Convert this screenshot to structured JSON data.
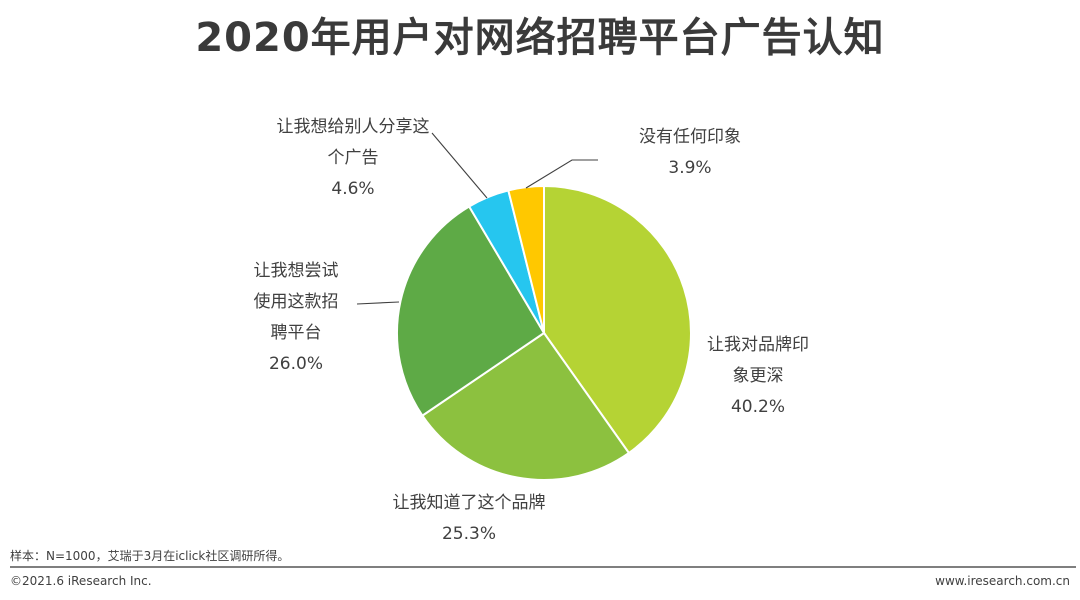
{
  "chart_data": {
    "type": "pie",
    "title": "2020年用户对网络招聘平台广告认知",
    "slices": [
      {
        "label_lines": [
          "让我对品牌印",
          "象更深"
        ],
        "value": 40.2,
        "value_text": "40.2%",
        "color": "#b5d334",
        "slice_name": "slice-brand-impression-deeper"
      },
      {
        "label_lines": [
          "让我知道了这个品牌"
        ],
        "value": 25.3,
        "value_text": "25.3%",
        "color": "#8cc13f",
        "slice_name": "slice-know-brand"
      },
      {
        "label_lines": [
          "让我想尝试",
          "使用这款招",
          "聘平台"
        ],
        "value": 26.0,
        "value_text": "26.0%",
        "color": "#5eaa46",
        "slice_name": "slice-want-to-try"
      },
      {
        "label_lines": [
          "让我想给别人分享这",
          "个广告"
        ],
        "value": 4.6,
        "value_text": "4.6%",
        "color": "#26c6ef",
        "slice_name": "slice-share-ad"
      },
      {
        "label_lines": [
          "没有任何印象"
        ],
        "value": 3.9,
        "value_text": "3.9%",
        "color": "#ffc800",
        "slice_name": "slice-no-impression"
      }
    ]
  },
  "note": "样本：N=1000，艾瑞于3月在iclick社区调研所得。",
  "footer": {
    "left": "©2021.6 iResearch Inc.",
    "right": "www.iresearch.com.cn"
  }
}
